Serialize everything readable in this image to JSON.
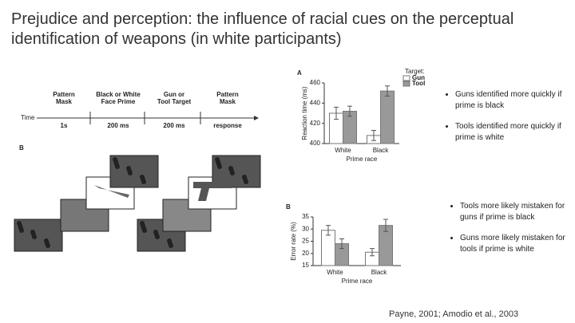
{
  "slide": {
    "title": "Prejudice and perception: the influence of racial cues on the perceptual identification of weapons (in white participants)",
    "bullets_top": [
      "Guns identified more quickly if prime is black",
      "Tools identified more quickly if prime is white"
    ],
    "bullets_bottom": [
      "Tools more likely mistaken for guns if prime is black",
      "Guns more likely mistaken for tools if prime is white"
    ],
    "citation": "Payne, 2001; Amodio et al., 2003"
  },
  "timeline": {
    "axis": "Time",
    "steps": [
      "Pattern Mask",
      "Black or White Face Prime",
      "Gun or Tool Target",
      "Pattern Mask"
    ],
    "durations": [
      "1s",
      "200 ms",
      "200 ms",
      "response"
    ],
    "panel": "B"
  },
  "chart_data": [
    {
      "type": "bar",
      "panel": "A",
      "ylabel": "Reaction time (ms)",
      "xlabel": "Prime race",
      "legend_title": "Target:",
      "categories": [
        "White",
        "Black"
      ],
      "ylim": [
        400,
        460
      ],
      "yticks": [
        400,
        420,
        440,
        460
      ],
      "series": [
        {
          "name": "Gun",
          "color": "#ffffff",
          "values": [
            430,
            408
          ],
          "errors": [
            6,
            5
          ]
        },
        {
          "name": "Tool",
          "color": "#999999",
          "values": [
            432,
            452
          ],
          "errors": [
            5,
            5
          ]
        }
      ]
    },
    {
      "type": "bar",
      "panel": "B",
      "ylabel": "Error rate (%)",
      "xlabel": "Prime race",
      "categories": [
        "White",
        "Black"
      ],
      "ylim": [
        15,
        35
      ],
      "yticks": [
        15,
        20,
        25,
        30,
        35
      ],
      "series": [
        {
          "name": "Gun",
          "color": "#ffffff",
          "values": [
            29.5,
            20.5
          ],
          "errors": [
            2,
            1.5
          ]
        },
        {
          "name": "Tool",
          "color": "#999999",
          "values": [
            24,
            31.5
          ],
          "errors": [
            2,
            2.5
          ]
        }
      ]
    }
  ]
}
